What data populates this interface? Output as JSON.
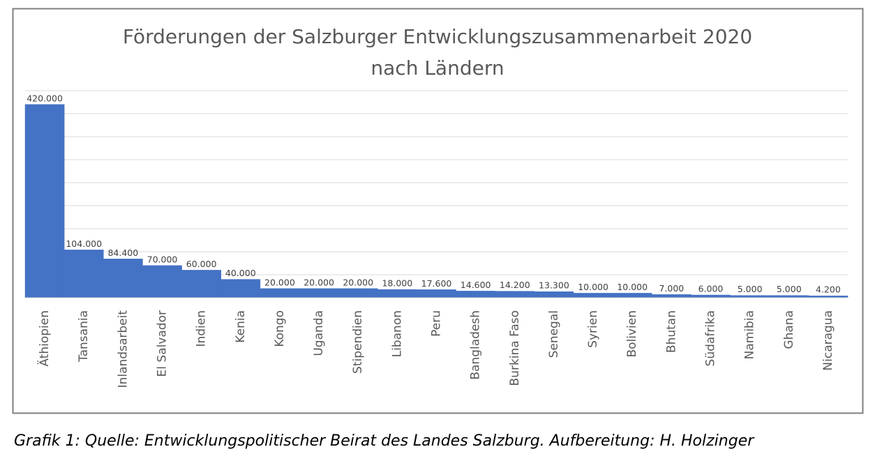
{
  "chart_data": {
    "type": "bar",
    "title": [
      "Förderungen der Salzburger Entwicklungszusammenarbeit 2020",
      "nach Ländern"
    ],
    "categories": [
      "Äthiopien",
      "Tansania",
      "Inlandsarbeit",
      "El Salvador",
      "Indien",
      "Kenia",
      "Kongo",
      "Uganda",
      "Stipendien",
      "Libanon",
      "Peru",
      "Bangladesh",
      "Burkina Faso",
      "Senegal",
      "Syrien",
      "Bolivien",
      "Bhutan",
      "Südafrika",
      "Namibia",
      "Ghana",
      "Nicaragua"
    ],
    "values": [
      420000,
      104000,
      84400,
      70000,
      60000,
      40000,
      20000,
      20000,
      20000,
      18000,
      17600,
      14600,
      14200,
      13300,
      10000,
      10000,
      7000,
      6000,
      5000,
      5000,
      4200
    ],
    "value_labels": [
      "420.000",
      "104.000",
      "84.400",
      "70.000",
      "60.000",
      "40.000",
      "20.000",
      "20.000",
      "20.000",
      "18.000",
      "17.600",
      "14.600",
      "14.200",
      "13.300",
      "10.000",
      "10.000",
      "7.000",
      "6.000",
      "5.000",
      "5.000",
      "4.200"
    ],
    "color": "#4472c4",
    "ylim": [
      0,
      450000
    ],
    "yticks": [
      0,
      50000,
      100000,
      150000,
      200000,
      250000,
      300000,
      350000,
      400000,
      450000
    ],
    "grid": true,
    "caption": "Grafik 1: Quelle: Entwicklungspolitischer Beirat des Landes Salzburg. Aufbereitung: H. Holzinger"
  }
}
